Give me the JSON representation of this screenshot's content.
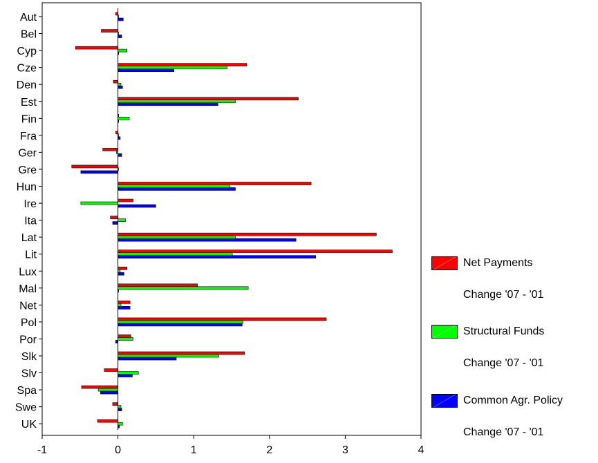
{
  "chart_data": {
    "type": "bar",
    "orientation": "horizontal",
    "categories": [
      "Aut",
      "Bel",
      "Cyp",
      "Cze",
      "Den",
      "Est",
      "Fin",
      "Fra",
      "Ger",
      "Gre",
      "Hun",
      "Ire",
      "Ita",
      "Lat",
      "Lit",
      "Lux",
      "Mal",
      "Net",
      "Pol",
      "Por",
      "Slk",
      "Slv",
      "Spa",
      "Swe",
      "UK"
    ],
    "xlim": [
      -1,
      4
    ],
    "xticks": [
      -1,
      0,
      1,
      2,
      3,
      4
    ],
    "grid": false,
    "legend_position": "right",
    "series": [
      {
        "name": "Net Payments",
        "subtitle": "Change '07 - '01",
        "color": "#ff0000",
        "values": [
          -0.03,
          -0.22,
          -0.56,
          1.7,
          -0.06,
          2.38,
          0.01,
          -0.03,
          -0.2,
          -0.61,
          2.55,
          0.2,
          -0.1,
          3.41,
          3.62,
          0.12,
          1.05,
          0.16,
          2.75,
          0.17,
          1.67,
          -0.18,
          -0.48,
          -0.07,
          -0.27
        ]
      },
      {
        "name": "Structural Funds",
        "subtitle": "Change '07 - '01",
        "color": "#00ff00",
        "values": [
          0.0,
          0.0,
          0.12,
          1.44,
          0.04,
          1.55,
          0.15,
          0.01,
          -0.02,
          0.0,
          1.48,
          -0.49,
          0.1,
          1.55,
          1.51,
          0.03,
          1.72,
          0.04,
          1.65,
          0.2,
          1.33,
          0.27,
          -0.26,
          0.04,
          0.06
        ]
      },
      {
        "name": "Common Agr. Policy",
        "subtitle": "Change '07 - '01",
        "color": "#0000ff",
        "values": [
          0.07,
          0.05,
          0.0,
          0.74,
          0.06,
          1.32,
          0.0,
          0.03,
          0.05,
          -0.49,
          1.55,
          0.5,
          -0.07,
          2.35,
          2.61,
          0.08,
          0.0,
          0.16,
          1.64,
          -0.03,
          0.77,
          0.19,
          -0.23,
          0.05,
          0.02
        ]
      }
    ]
  }
}
